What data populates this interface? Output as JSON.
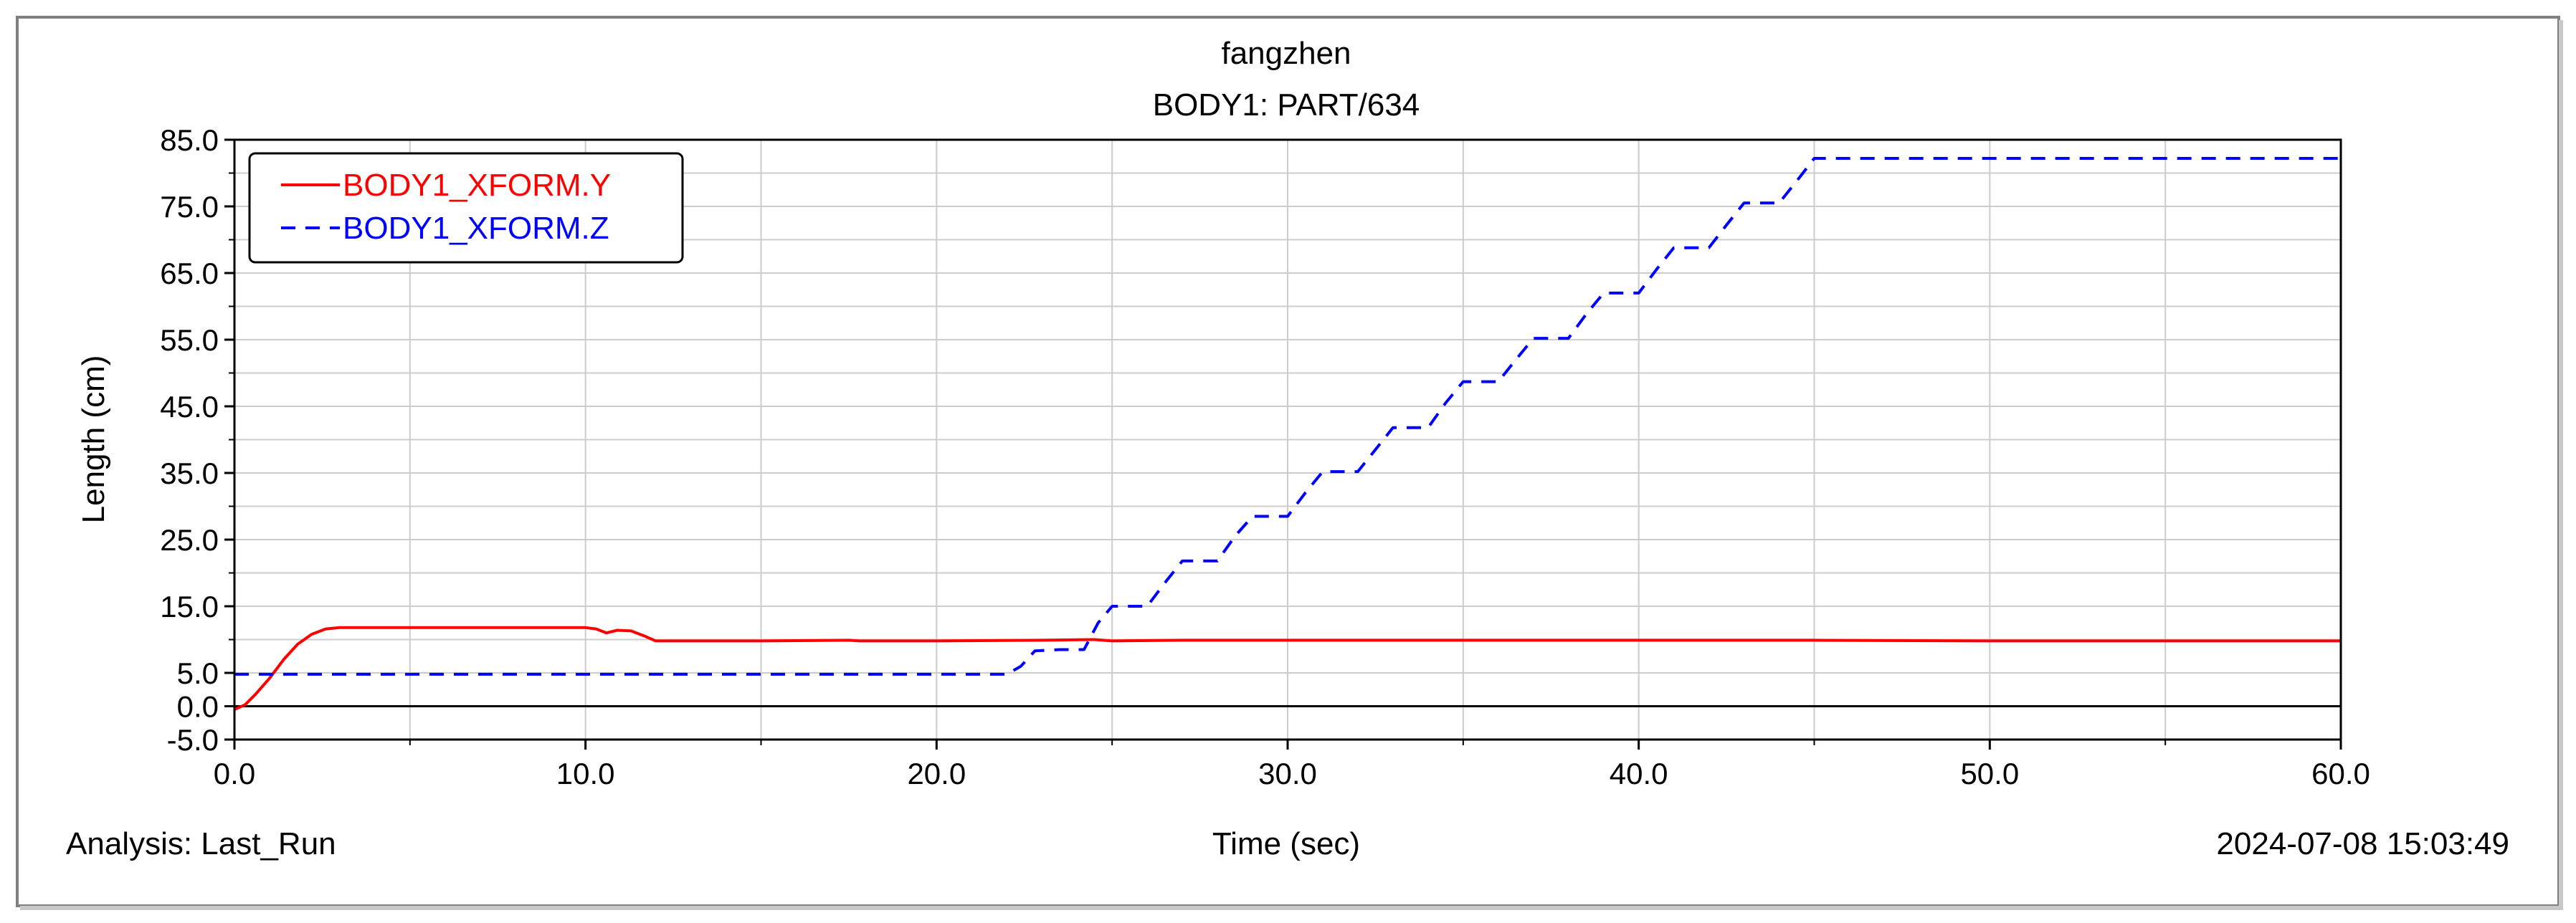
{
  "chart_data": {
    "type": "line",
    "title": "fangzhen",
    "subtitle": "BODY1: PART/634",
    "xlabel": "Time (sec)",
    "ylabel": "Length (cm)",
    "xlim": [
      0,
      60
    ],
    "ylim": [
      -5,
      85
    ],
    "x_ticks": [
      "0.0",
      "10.0",
      "20.0",
      "30.0",
      "40.0",
      "50.0",
      "60.0"
    ],
    "x_tick_values": [
      0,
      10,
      20,
      30,
      40,
      50,
      60
    ],
    "y_ticks": [
      "85.0",
      "75.0",
      "65.0",
      "55.0",
      "45.0",
      "35.0",
      "25.0",
      "15.0",
      "5.0",
      "0.0",
      "-5.0"
    ],
    "y_tick_values": [
      85,
      75,
      65,
      55,
      45,
      35,
      25,
      15,
      5,
      0,
      -5
    ],
    "grid": true,
    "legend_position": "top-left",
    "series": [
      {
        "name": "BODY1_XFORM.Y",
        "color": "#ff0000",
        "dash": "solid",
        "x": [
          0,
          0.3,
          0.6,
          1.0,
          1.4,
          1.8,
          2.2,
          2.6,
          3.0,
          5.0,
          8.0,
          10.0,
          10.3,
          10.6,
          10.9,
          11.3,
          11.7,
          12.0,
          15.0,
          17.5,
          17.8,
          20.0,
          23.0,
          24.5,
          25.0,
          27.0,
          30.0,
          35.0,
          40.0,
          45.0,
          50.0,
          55.0,
          60.0
        ],
        "y": [
          -0.5,
          0.2,
          1.8,
          4.2,
          7.0,
          9.3,
          10.8,
          11.6,
          11.8,
          11.8,
          11.8,
          11.8,
          11.6,
          11.0,
          11.4,
          11.3,
          10.5,
          9.8,
          9.8,
          9.9,
          9.8,
          9.8,
          9.9,
          10.0,
          9.8,
          9.9,
          9.9,
          9.9,
          9.9,
          9.9,
          9.8,
          9.8,
          9.8
        ]
      },
      {
        "name": "BODY1_XFORM.Z",
        "color": "#0000ff",
        "dash": "dashed",
        "x": [
          0,
          22.0,
          22.4,
          22.8,
          23.5,
          24.2,
          24.6,
          25.0,
          26.0,
          26.5,
          27.0,
          28.0,
          28.5,
          29.0,
          30.0,
          30.5,
          31.0,
          32.0,
          32.5,
          33.0,
          34.0,
          34.5,
          35.0,
          36.0,
          36.5,
          37.0,
          38.0,
          38.5,
          39.0,
          40.0,
          40.5,
          41.0,
          42.0,
          42.5,
          43.0,
          44.0,
          44.5,
          45.0,
          60.0
        ],
        "y": [
          4.8,
          4.8,
          6.0,
          8.3,
          8.5,
          8.5,
          12.5,
          15.0,
          15.0,
          18.5,
          21.8,
          21.8,
          25.5,
          28.5,
          28.5,
          32.0,
          35.2,
          35.2,
          38.5,
          41.8,
          41.8,
          45.5,
          48.7,
          48.7,
          52.0,
          55.2,
          55.2,
          58.8,
          62.0,
          62.0,
          65.5,
          68.8,
          68.8,
          72.2,
          75.5,
          75.5,
          78.8,
          82.2,
          82.2
        ]
      }
    ]
  },
  "footer": {
    "analysis": "Analysis:  Last_Run",
    "timestamp": "2024-07-08 15:03:49"
  }
}
